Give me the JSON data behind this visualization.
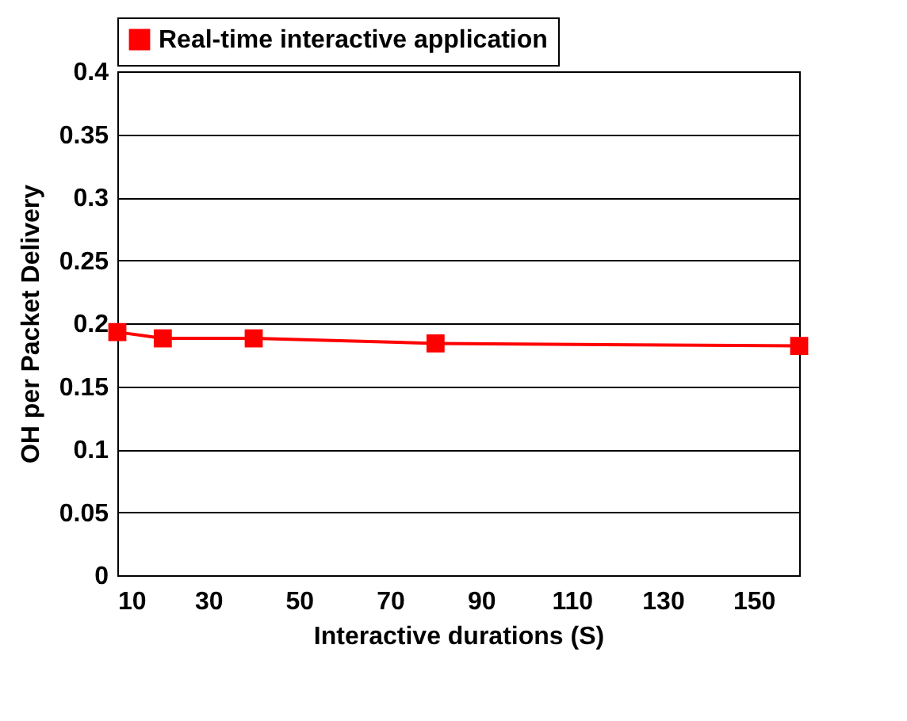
{
  "chart_data": {
    "type": "line",
    "xlabel": "Interactive durations (S)",
    "ylabel": "OH per Packet Delivery",
    "x": [
      10,
      20,
      40,
      80,
      160
    ],
    "series": [
      {
        "name": "Real-time interactive application",
        "color": "#ff0000",
        "values": [
          0.193,
          0.188,
          0.188,
          0.184,
          0.182
        ]
      }
    ],
    "xlim": [
      10,
      160
    ],
    "xticks": [
      10,
      30,
      50,
      70,
      90,
      110,
      130,
      150
    ],
    "ylim": [
      0,
      0.4
    ],
    "yticks": [
      0,
      0.05,
      0.1,
      0.15,
      0.2,
      0.25,
      0.3,
      0.35,
      0.4
    ],
    "grid": "y",
    "legend": "top",
    "marker": "square",
    "line_style": "solid"
  }
}
